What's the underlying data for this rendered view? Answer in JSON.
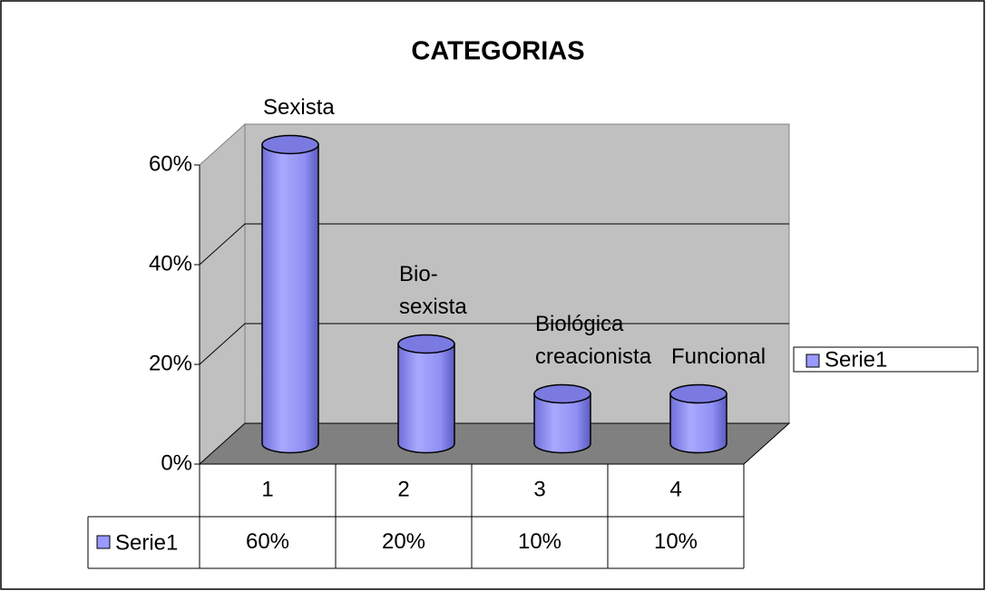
{
  "chart_data": {
    "type": "bar",
    "title": "CATEGORIAS",
    "categories": [
      "1",
      "2",
      "3",
      "4"
    ],
    "series": [
      {
        "name": "Serie1",
        "color": "#9999ff",
        "values": [
          60,
          20,
          10,
          10
        ],
        "value_labels": [
          "60%",
          "20%",
          "10%",
          "10%"
        ]
      }
    ],
    "point_labels": [
      [
        "Sexista"
      ],
      [
        "Bio-",
        "sexista"
      ],
      [
        "Biológica",
        "creacionista"
      ],
      [
        "Funcional"
      ]
    ],
    "ylim": [
      0,
      60
    ],
    "yticks": [
      {
        "value": 0,
        "label": "0%"
      },
      {
        "value": 20,
        "label": "20%"
      },
      {
        "value": 40,
        "label": "40%"
      },
      {
        "value": 60,
        "label": "60%"
      }
    ],
    "grid": true,
    "legend": "right",
    "data_table": true
  }
}
